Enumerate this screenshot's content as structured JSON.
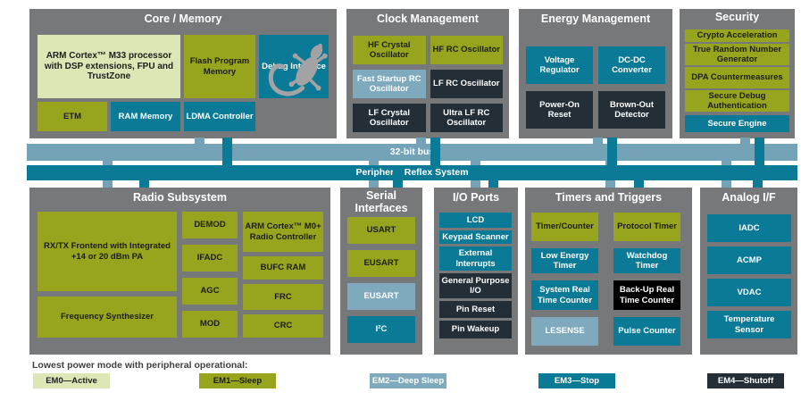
{
  "colors": {
    "container": "#77787a",
    "em0": "#dde7b6",
    "em1": "#96a41e",
    "em2": "#7fa9bd",
    "em3": "#0b7a96",
    "em4": "#232e37",
    "black": "#000000",
    "bus32": "#74a3b8",
    "gecko": "#a3a3a5"
  },
  "sections": {
    "core_memory": {
      "title": "Core / Memory",
      "blocks": [
        {
          "name": "arm-cortex-m33-processor",
          "em": "em0",
          "label": "ARM Cortex™ M33 processor with DSP extensions, FPU and TrustZone"
        },
        {
          "name": "flash-program-memory",
          "em": "em1",
          "label": "Flash Program Memory"
        },
        {
          "name": "etm",
          "em": "em1",
          "label": "ETM"
        },
        {
          "name": "debug-interface",
          "em": "em3",
          "label": "Debug Interface"
        },
        {
          "name": "ram-memory",
          "em": "em3",
          "label": "RAM Memory"
        },
        {
          "name": "ldma-controller",
          "em": "em3",
          "label": "LDMA Controller"
        }
      ]
    },
    "clock_management": {
      "title": "Clock Management",
      "blocks": [
        {
          "name": "hf-crystal-oscillator",
          "em": "em1",
          "label": "HF Crystal Oscillator"
        },
        {
          "name": "hf-rc-oscillator",
          "em": "em1",
          "label": "HF RC Oscillator"
        },
        {
          "name": "fast-startup-rc-oscillator",
          "em": "em2",
          "label": "Fast Startup RC Oscillator"
        },
        {
          "name": "lf-rc-oscillator",
          "em": "em4",
          "label": "LF RC Oscillator"
        },
        {
          "name": "lf-crystal-oscillator",
          "em": "em4",
          "label": "LF Crystal Oscillator"
        },
        {
          "name": "ultra-lf-rc-oscillator",
          "em": "em4",
          "label": "Ultra LF RC Oscillator"
        }
      ]
    },
    "energy_management": {
      "title": "Energy Management",
      "blocks": [
        {
          "name": "voltage-regulator",
          "em": "em3",
          "label": "Voltage Regulator"
        },
        {
          "name": "dc-dc-converter",
          "em": "em3",
          "label": "DC-DC Converter"
        },
        {
          "name": "power-on-reset",
          "em": "em4",
          "label": "Power-On Reset"
        },
        {
          "name": "brown-out-detector",
          "em": "em4",
          "label": "Brown-Out Detector"
        }
      ]
    },
    "security": {
      "title": "Security",
      "blocks": [
        {
          "name": "crypto-acceleration",
          "em": "em1",
          "label": "Crypto Acceleration"
        },
        {
          "name": "true-random-number-generator",
          "em": "em1",
          "label": "True Random Number Generator"
        },
        {
          "name": "dpa-countermeasures",
          "em": "em1",
          "label": "DPA Countermeasures"
        },
        {
          "name": "secure-debug-authentication",
          "em": "em1",
          "label": "Secure Debug Authentication"
        },
        {
          "name": "secure-engine",
          "em": "em3",
          "label": "Secure Engine"
        }
      ]
    },
    "radio_subsystem": {
      "title": "Radio Subsystem",
      "col1": [
        {
          "name": "rx-tx-frontend",
          "em": "em1",
          "label": "RX/TX Frontend with Integrated +14 or 20 dBm PA"
        },
        {
          "name": "frequency-synthesizer",
          "em": "em1",
          "label": "Frequency Synthesizer"
        }
      ],
      "col2": [
        {
          "name": "demod",
          "em": "em1",
          "label": "DEMOD"
        },
        {
          "name": "ifadc",
          "em": "em1",
          "label": "IFADC"
        },
        {
          "name": "agc",
          "em": "em1",
          "label": "AGC"
        },
        {
          "name": "mod",
          "em": "em1",
          "label": "MOD"
        }
      ],
      "col3": [
        {
          "name": "arm-cortex-m0-radio-controller",
          "em": "em1",
          "label": "ARM Cortex™ M0+ Radio Controller"
        },
        {
          "name": "bufc-ram",
          "em": "em1",
          "label": "BUFC RAM"
        },
        {
          "name": "frc",
          "em": "em1",
          "label": "FRC"
        },
        {
          "name": "crc",
          "em": "em1",
          "label": "CRC"
        }
      ]
    },
    "serial_interfaces": {
      "title": "Serial Interfaces",
      "blocks": [
        {
          "name": "usart",
          "em": "em1",
          "label": "USART"
        },
        {
          "name": "eusart-em1",
          "em": "em1",
          "label": "EUSART"
        },
        {
          "name": "eusart-em2",
          "em": "em2",
          "label": "EUSART"
        },
        {
          "name": "i2c",
          "em": "em3",
          "label": "I²C"
        }
      ]
    },
    "io_ports": {
      "title": "I/O Ports",
      "blocks": [
        {
          "name": "lcd",
          "em": "em3",
          "label": "LCD"
        },
        {
          "name": "keypad-scanner",
          "em": "em3",
          "label": "Keypad Scanner"
        },
        {
          "name": "external-interrupts",
          "em": "em3",
          "label": "External Interrupts"
        },
        {
          "name": "general-purpose-io",
          "em": "em4",
          "label": "General Purpose I/O"
        },
        {
          "name": "pin-reset",
          "em": "em4",
          "label": "Pin Reset"
        },
        {
          "name": "pin-wakeup",
          "em": "em4",
          "label": "Pin Wakeup"
        }
      ]
    },
    "timers_triggers": {
      "title": "Timers and Triggers",
      "blocks": [
        {
          "name": "timer-counter",
          "em": "em1",
          "label": "Timer/Counter"
        },
        {
          "name": "protocol-timer",
          "em": "em1",
          "label": "Protocol Timer"
        },
        {
          "name": "low-energy-timer",
          "em": "em3",
          "label": "Low Energy Timer"
        },
        {
          "name": "watchdog-timer",
          "em": "em3",
          "label": "Watchdog Timer"
        },
        {
          "name": "system-real-time-counter",
          "em": "em3",
          "label": "System Real Time Counter"
        },
        {
          "name": "back-up-real-time-counter",
          "em": "black",
          "label": "Back-Up Real Time Counter"
        },
        {
          "name": "lesense",
          "em": "em2",
          "label": "LESENSE"
        },
        {
          "name": "pulse-counter",
          "em": "em3",
          "label": "Pulse Counter"
        }
      ]
    },
    "analog_if": {
      "title": "Analog I/F",
      "blocks": [
        {
          "name": "iadc",
          "em": "em3",
          "label": "IADC"
        },
        {
          "name": "acmp",
          "em": "em3",
          "label": "ACMP"
        },
        {
          "name": "vdac",
          "em": "em3",
          "label": "VDAC"
        },
        {
          "name": "temperature-sensor",
          "em": "em3",
          "label": "Temperature Sensor"
        }
      ]
    }
  },
  "bus": {
    "bus32_label": "32-bit bus",
    "prs_label": "Peripheral Reflex System"
  },
  "legend": {
    "caption": "Lowest power mode with peripheral operational:",
    "items": [
      {
        "name": "legend-em0-active",
        "em": "em0",
        "label": "EM0—Active"
      },
      {
        "name": "legend-em1-sleep",
        "em": "em1",
        "label": "EM1—Sleep"
      },
      {
        "name": "legend-em2-deep-sleep",
        "em": "em2",
        "label": "EM2—Deep Sleep"
      },
      {
        "name": "legend-em3-stop",
        "em": "em3",
        "label": "EM3—Stop"
      },
      {
        "name": "legend-em4-shutoff",
        "em": "em4",
        "label": "EM4—Shutoff"
      }
    ]
  }
}
